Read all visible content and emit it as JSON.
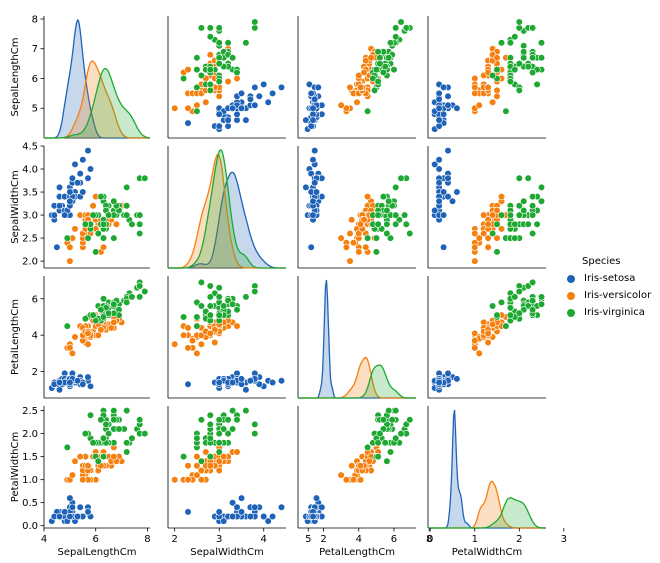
{
  "chart_data": {
    "type": "scatter",
    "kind": "pairplot",
    "variables": [
      "SepalLengthCm",
      "SepalWidthCm",
      "PetalLengthCm",
      "PetalWidthCm"
    ],
    "diagonal": "kde",
    "hue": "Species",
    "legend": {
      "title": "Species",
      "placement": "right"
    },
    "ranges": {
      "SepalLengthCm": [
        4.0,
        8.1
      ],
      "SepalWidthCm": [
        1.85,
        4.5
      ],
      "PetalLengthCm": [
        0.55,
        7.25
      ],
      "PetalWidthCm": [
        -0.05,
        2.6
      ]
    },
    "ticks": {
      "SepalLengthCm": {
        "row": [
          "5",
          "6",
          "7",
          "8"
        ],
        "col": [
          "4",
          "6",
          "8"
        ]
      },
      "SepalWidthCm": {
        "row": [
          "2.0",
          "2.5",
          "3.0",
          "3.5",
          "4.0",
          "4.5"
        ],
        "col": [
          "2",
          "3",
          "4",
          "5"
        ]
      },
      "PetalLengthCm": {
        "row": [
          "2",
          "4",
          "6"
        ],
        "col": [
          "2",
          "4",
          "6",
          "8"
        ]
      },
      "PetalWidthCm": {
        "row": [
          "0.0",
          "0.5",
          "1.0",
          "1.5",
          "2.0",
          "2.5"
        ],
        "col": [
          "0",
          "1",
          "2",
          "3"
        ]
      }
    },
    "diag_x_ranges": {
      "SepalLengthCm": [
        3.3,
        8.7
      ],
      "SepalWidthCm": [
        1.2,
        5.2
      ],
      "PetalLengthCm": [
        -0.7,
        8.3
      ],
      "PetalWidthCm": [
        -0.6,
        3.0
      ]
    },
    "series": [
      {
        "name": "Iris-setosa",
        "color": "#1f63b8",
        "points": [
          [
            5.1,
            3.5,
            1.4,
            0.2
          ],
          [
            4.9,
            3.0,
            1.4,
            0.2
          ],
          [
            4.7,
            3.2,
            1.3,
            0.2
          ],
          [
            4.6,
            3.1,
            1.5,
            0.2
          ],
          [
            5.0,
            3.6,
            1.4,
            0.2
          ],
          [
            5.4,
            3.9,
            1.7,
            0.4
          ],
          [
            4.6,
            3.4,
            1.4,
            0.3
          ],
          [
            5.0,
            3.4,
            1.5,
            0.2
          ],
          [
            4.4,
            2.9,
            1.4,
            0.2
          ],
          [
            4.9,
            3.1,
            1.5,
            0.1
          ],
          [
            5.4,
            3.7,
            1.5,
            0.2
          ],
          [
            4.8,
            3.4,
            1.6,
            0.2
          ],
          [
            4.8,
            3.0,
            1.4,
            0.1
          ],
          [
            4.3,
            3.0,
            1.1,
            0.1
          ],
          [
            5.8,
            4.0,
            1.2,
            0.2
          ],
          [
            5.7,
            4.4,
            1.5,
            0.4
          ],
          [
            5.4,
            3.9,
            1.3,
            0.4
          ],
          [
            5.1,
            3.5,
            1.4,
            0.3
          ],
          [
            5.7,
            3.8,
            1.7,
            0.3
          ],
          [
            5.1,
            3.8,
            1.5,
            0.3
          ],
          [
            5.4,
            3.4,
            1.7,
            0.2
          ],
          [
            5.1,
            3.7,
            1.5,
            0.4
          ],
          [
            4.6,
            3.6,
            1.0,
            0.2
          ],
          [
            5.1,
            3.3,
            1.7,
            0.5
          ],
          [
            4.8,
            3.4,
            1.9,
            0.2
          ],
          [
            5.0,
            3.0,
            1.6,
            0.2
          ],
          [
            5.0,
            3.4,
            1.6,
            0.4
          ],
          [
            5.2,
            3.5,
            1.5,
            0.2
          ],
          [
            5.2,
            3.4,
            1.4,
            0.2
          ],
          [
            4.7,
            3.2,
            1.6,
            0.2
          ],
          [
            4.8,
            3.1,
            1.6,
            0.2
          ],
          [
            5.4,
            3.4,
            1.5,
            0.4
          ],
          [
            5.2,
            4.1,
            1.5,
            0.1
          ],
          [
            5.5,
            4.2,
            1.4,
            0.2
          ],
          [
            4.9,
            3.1,
            1.5,
            0.1
          ],
          [
            5.0,
            3.2,
            1.2,
            0.2
          ],
          [
            5.5,
            3.5,
            1.3,
            0.2
          ],
          [
            4.4,
            3.0,
            1.3,
            0.2
          ],
          [
            5.1,
            3.4,
            1.5,
            0.2
          ],
          [
            5.0,
            3.5,
            1.3,
            0.3
          ],
          [
            4.5,
            2.3,
            1.3,
            0.3
          ],
          [
            4.4,
            3.2,
            1.3,
            0.2
          ],
          [
            5.0,
            3.5,
            1.6,
            0.6
          ],
          [
            5.1,
            3.8,
            1.9,
            0.4
          ],
          [
            4.8,
            3.0,
            1.4,
            0.3
          ],
          [
            5.1,
            3.8,
            1.6,
            0.2
          ],
          [
            4.6,
            3.2,
            1.4,
            0.2
          ],
          [
            5.3,
            3.7,
            1.5,
            0.2
          ],
          [
            5.0,
            3.3,
            1.4,
            0.2
          ]
        ]
      },
      {
        "name": "Iris-versicolor",
        "color": "#f5800f",
        "points": [
          [
            7.0,
            3.2,
            4.7,
            1.4
          ],
          [
            6.4,
            3.2,
            4.5,
            1.5
          ],
          [
            6.9,
            3.1,
            4.9,
            1.5
          ],
          [
            5.5,
            2.3,
            4.0,
            1.3
          ],
          [
            6.5,
            2.8,
            4.6,
            1.5
          ],
          [
            5.7,
            2.8,
            4.5,
            1.3
          ],
          [
            6.3,
            3.3,
            4.7,
            1.6
          ],
          [
            4.9,
            2.4,
            3.3,
            1.0
          ],
          [
            6.6,
            2.9,
            4.6,
            1.3
          ],
          [
            5.2,
            2.7,
            3.9,
            1.4
          ],
          [
            5.0,
            2.0,
            3.5,
            1.0
          ],
          [
            5.9,
            3.0,
            4.2,
            1.5
          ],
          [
            6.0,
            2.2,
            4.0,
            1.0
          ],
          [
            6.1,
            2.9,
            4.7,
            1.4
          ],
          [
            5.6,
            2.9,
            3.6,
            1.3
          ],
          [
            6.7,
            3.1,
            4.4,
            1.4
          ],
          [
            5.6,
            3.0,
            4.5,
            1.5
          ],
          [
            5.8,
            2.7,
            4.1,
            1.0
          ],
          [
            6.2,
            2.2,
            4.5,
            1.5
          ],
          [
            5.6,
            2.5,
            3.9,
            1.1
          ],
          [
            5.9,
            3.2,
            4.8,
            1.8
          ],
          [
            6.1,
            2.8,
            4.0,
            1.3
          ],
          [
            6.3,
            2.5,
            4.9,
            1.5
          ],
          [
            6.1,
            2.8,
            4.7,
            1.2
          ],
          [
            6.4,
            2.9,
            4.3,
            1.3
          ],
          [
            6.6,
            3.0,
            4.4,
            1.4
          ],
          [
            6.8,
            2.8,
            4.8,
            1.4
          ],
          [
            6.7,
            3.0,
            5.0,
            1.7
          ],
          [
            6.0,
            2.9,
            4.5,
            1.5
          ],
          [
            5.7,
            2.6,
            3.5,
            1.0
          ],
          [
            5.5,
            2.4,
            3.8,
            1.1
          ],
          [
            5.5,
            2.4,
            3.7,
            1.0
          ],
          [
            5.8,
            2.7,
            3.9,
            1.2
          ],
          [
            6.0,
            2.7,
            5.1,
            1.6
          ],
          [
            5.4,
            3.0,
            4.5,
            1.5
          ],
          [
            6.0,
            3.4,
            4.5,
            1.6
          ],
          [
            6.7,
            3.1,
            4.7,
            1.5
          ],
          [
            6.3,
            2.3,
            4.4,
            1.3
          ],
          [
            5.6,
            3.0,
            4.1,
            1.3
          ],
          [
            5.5,
            2.5,
            4.0,
            1.3
          ],
          [
            5.5,
            2.6,
            4.4,
            1.2
          ],
          [
            6.1,
            3.0,
            4.6,
            1.4
          ],
          [
            5.8,
            2.6,
            4.0,
            1.2
          ],
          [
            5.0,
            2.3,
            3.3,
            1.0
          ],
          [
            5.6,
            2.7,
            4.2,
            1.3
          ],
          [
            5.7,
            3.0,
            4.2,
            1.2
          ],
          [
            5.7,
            2.9,
            4.2,
            1.3
          ],
          [
            6.2,
            2.9,
            4.3,
            1.3
          ],
          [
            5.1,
            2.5,
            3.0,
            1.1
          ],
          [
            5.7,
            2.8,
            4.1,
            1.3
          ]
        ]
      },
      {
        "name": "Iris-virginica",
        "color": "#1ea832",
        "points": [
          [
            6.3,
            3.3,
            6.0,
            2.5
          ],
          [
            5.8,
            2.7,
            5.1,
            1.9
          ],
          [
            7.1,
            3.0,
            5.9,
            2.1
          ],
          [
            6.3,
            2.9,
            5.6,
            1.8
          ],
          [
            6.5,
            3.0,
            5.8,
            2.2
          ],
          [
            7.6,
            3.0,
            6.6,
            2.1
          ],
          [
            4.9,
            2.5,
            4.5,
            1.7
          ],
          [
            7.3,
            2.9,
            6.3,
            1.8
          ],
          [
            6.7,
            2.5,
            5.8,
            1.8
          ],
          [
            7.2,
            3.6,
            6.1,
            2.5
          ],
          [
            6.5,
            3.2,
            5.1,
            2.0
          ],
          [
            6.4,
            2.7,
            5.3,
            1.9
          ],
          [
            6.8,
            3.0,
            5.5,
            2.1
          ],
          [
            5.7,
            2.5,
            5.0,
            2.0
          ],
          [
            5.8,
            2.8,
            5.1,
            2.4
          ],
          [
            6.4,
            3.2,
            5.3,
            2.3
          ],
          [
            6.5,
            3.0,
            5.5,
            1.8
          ],
          [
            7.7,
            3.8,
            6.7,
            2.2
          ],
          [
            7.7,
            2.6,
            6.9,
            2.3
          ],
          [
            6.0,
            2.2,
            5.0,
            1.5
          ],
          [
            6.9,
            3.2,
            5.7,
            2.3
          ],
          [
            5.6,
            2.8,
            4.9,
            2.0
          ],
          [
            7.7,
            2.8,
            6.7,
            2.0
          ],
          [
            6.3,
            2.7,
            4.9,
            1.8
          ],
          [
            6.7,
            3.3,
            5.7,
            2.1
          ],
          [
            7.2,
            3.2,
            6.0,
            1.8
          ],
          [
            6.2,
            2.8,
            4.8,
            1.8
          ],
          [
            6.1,
            3.0,
            4.9,
            1.8
          ],
          [
            6.4,
            2.8,
            5.6,
            2.1
          ],
          [
            7.2,
            3.0,
            5.8,
            1.6
          ],
          [
            7.4,
            2.8,
            6.1,
            1.9
          ],
          [
            7.9,
            3.8,
            6.4,
            2.0
          ],
          [
            6.4,
            2.8,
            5.6,
            2.2
          ],
          [
            6.3,
            2.8,
            5.1,
            1.5
          ],
          [
            6.1,
            2.6,
            5.6,
            1.4
          ],
          [
            7.7,
            3.0,
            6.1,
            2.3
          ],
          [
            6.3,
            3.4,
            5.6,
            2.4
          ],
          [
            6.4,
            3.1,
            5.5,
            1.8
          ],
          [
            6.0,
            3.0,
            4.8,
            1.8
          ],
          [
            6.9,
            3.1,
            5.4,
            2.1
          ],
          [
            6.7,
            3.1,
            5.6,
            2.4
          ],
          [
            6.9,
            3.1,
            5.1,
            2.3
          ],
          [
            6.8,
            3.2,
            5.9,
            2.3
          ],
          [
            6.7,
            3.3,
            5.7,
            2.5
          ],
          [
            6.7,
            3.0,
            5.2,
            2.3
          ],
          [
            6.3,
            2.5,
            5.0,
            1.9
          ],
          [
            6.5,
            3.0,
            5.2,
            2.0
          ],
          [
            6.2,
            3.4,
            5.4,
            2.3
          ],
          [
            5.9,
            3.0,
            5.1,
            1.8
          ]
        ]
      }
    ]
  }
}
